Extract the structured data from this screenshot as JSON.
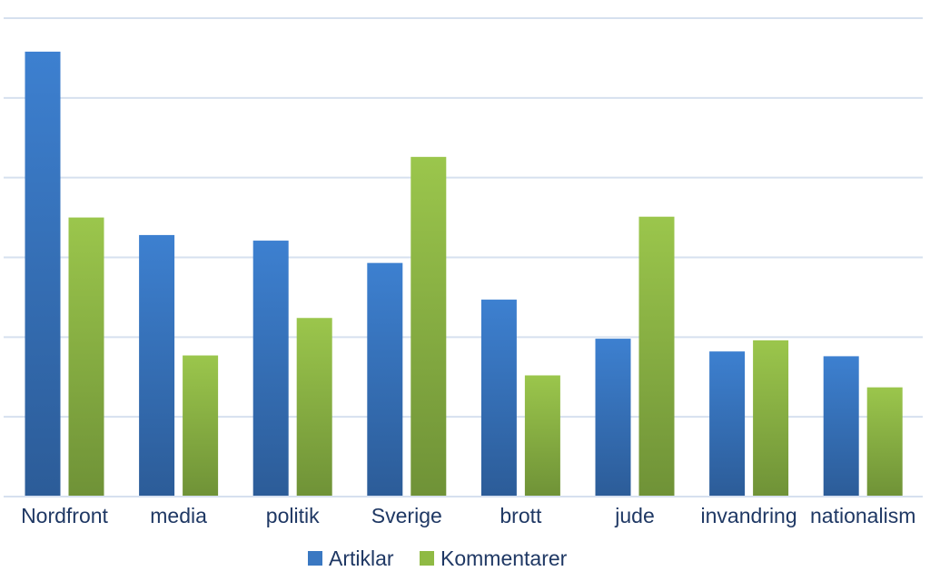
{
  "chart_data": {
    "type": "bar",
    "title": "",
    "xlabel": "",
    "ylabel": "",
    "categories": [
      "Nordfront",
      "media",
      "politik",
      "Sverige",
      "brott",
      "jude",
      "invandring",
      "nationalism"
    ],
    "series": [
      {
        "name": "Artiklar",
        "color": "#3a78c2",
        "values": [
          55.8,
          32.8,
          32.1,
          29.3,
          24.7,
          19.8,
          18.2,
          17.6
        ]
      },
      {
        "name": "Kommentarer",
        "color": "#8fba44",
        "values": [
          35.0,
          17.7,
          22.4,
          42.6,
          15.2,
          35.1,
          19.6,
          13.7
        ]
      }
    ],
    "ylim": [
      0,
      60
    ],
    "y_ticks_labeled": false,
    "grid": true,
    "legend_position": "bottom-center"
  }
}
